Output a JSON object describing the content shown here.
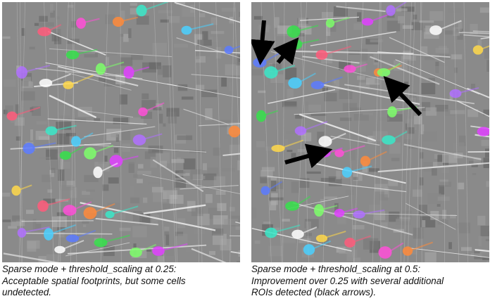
{
  "figure": {
    "left_panel": {
      "caption_lines": [
        "Sparse mode + threshold_scaling at 0.25:",
        "Acceptable spatial footprints, but some cells",
        "undetected."
      ]
    },
    "right_panel": {
      "caption_lines": [
        "Sparse mode + threshold_scaling at 0.5:",
        "Improvement over 0.25 with several additional",
        "ROIs detected (black arrows)."
      ]
    }
  },
  "roi_palette": [
    "#ff4fd8",
    "#35e04a",
    "#ffd84a",
    "#4ad0ff",
    "#b070ff",
    "#ff8a3a",
    "#7cff6a",
    "#ff5a7a",
    "#5a7aff",
    "#ffffff",
    "#3ae8c8",
    "#e040ff"
  ],
  "arrow_color": "#000000"
}
